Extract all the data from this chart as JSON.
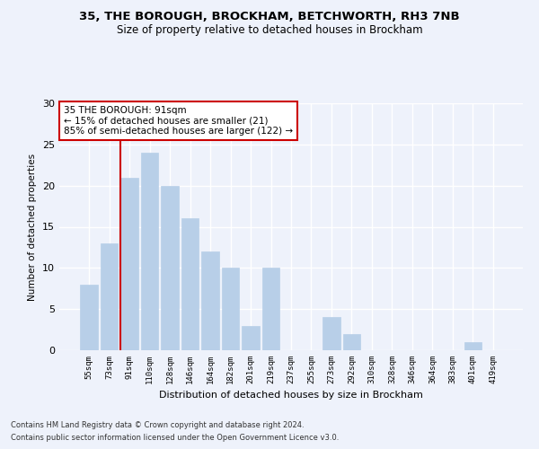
{
  "title1": "35, THE BOROUGH, BROCKHAM, BETCHWORTH, RH3 7NB",
  "title2": "Size of property relative to detached houses in Brockham",
  "xlabel": "Distribution of detached houses by size in Brockham",
  "ylabel": "Number of detached properties",
  "categories": [
    "55sqm",
    "73sqm",
    "91sqm",
    "110sqm",
    "128sqm",
    "146sqm",
    "164sqm",
    "182sqm",
    "201sqm",
    "219sqm",
    "237sqm",
    "255sqm",
    "273sqm",
    "292sqm",
    "310sqm",
    "328sqm",
    "346sqm",
    "364sqm",
    "383sqm",
    "401sqm",
    "419sqm"
  ],
  "values": [
    8,
    13,
    21,
    24,
    20,
    16,
    12,
    10,
    3,
    10,
    0,
    0,
    4,
    2,
    0,
    0,
    0,
    0,
    0,
    1,
    0
  ],
  "bar_color": "#b8cfe8",
  "bar_edgecolor": "#b8cfe8",
  "highlight_index": 2,
  "highlight_color": "#cc0000",
  "annotation_text": "35 THE BOROUGH: 91sqm\n← 15% of detached houses are smaller (21)\n85% of semi-detached houses are larger (122) →",
  "annotation_box_color": "#ffffff",
  "annotation_box_edgecolor": "#cc0000",
  "footer1": "Contains HM Land Registry data © Crown copyright and database right 2024.",
  "footer2": "Contains public sector information licensed under the Open Government Licence v3.0.",
  "ylim": [
    0,
    30
  ],
  "yticks": [
    0,
    5,
    10,
    15,
    20,
    25,
    30
  ],
  "background_color": "#eef2fb",
  "grid_color": "#ffffff"
}
